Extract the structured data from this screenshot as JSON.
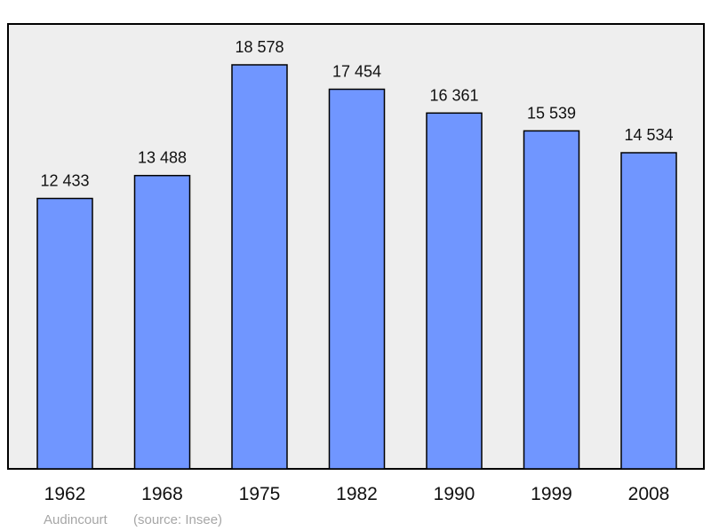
{
  "chart_data": {
    "type": "bar",
    "categories": [
      "1962",
      "1968",
      "1975",
      "1982",
      "1990",
      "1999",
      "2008"
    ],
    "values": [
      12433,
      13488,
      18578,
      17454,
      16361,
      15539,
      14534
    ],
    "value_labels": [
      "12 433",
      "13 488",
      "18 578",
      "17 454",
      "16 361",
      "15 539",
      "14 534"
    ],
    "title": "",
    "xlabel": "",
    "ylabel": "",
    "ylim": [
      0,
      20000
    ],
    "grid": false,
    "legend": "none"
  },
  "caption": {
    "place": "Audincourt",
    "source": "(source: Insee)"
  },
  "colors": {
    "bar_fill": "#7096ff",
    "bar_stroke": "#000000",
    "plot_background": "#eeeeee",
    "plot_border": "#000000",
    "caption_text": "#a6a6a6"
  }
}
